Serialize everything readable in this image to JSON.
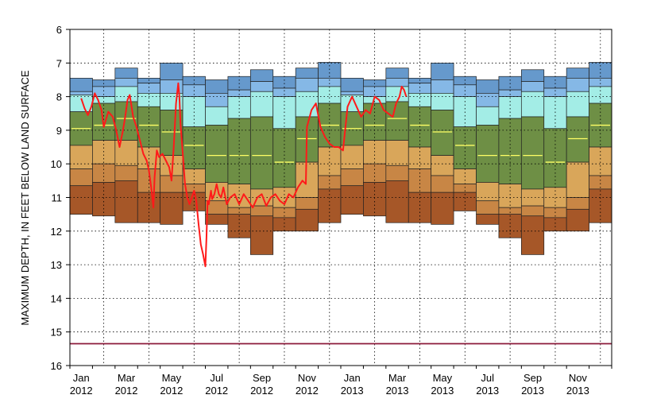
{
  "chart_data": {
    "type": "box-bands-with-line",
    "ylabel": "MAXIMUM DEPTH, IN FEET BELOW LAND SURFACE",
    "y_axis": {
      "min": 6,
      "max": 16,
      "inverted": true,
      "ticks": [
        6,
        7,
        8,
        9,
        10,
        11,
        12,
        13,
        14,
        15,
        16
      ]
    },
    "x_axis": {
      "unit": "months since Jan 2012 (0 = Jan 1 2012)",
      "range": [
        -0.5,
        23.5
      ],
      "tick_labels": [
        {
          "m": 0,
          "top": "Jan",
          "bottom": "2012"
        },
        {
          "m": 2,
          "top": "Mar",
          "bottom": "2012"
        },
        {
          "m": 4,
          "top": "May",
          "bottom": "2012"
        },
        {
          "m": 6,
          "top": "Jul",
          "bottom": "2012"
        },
        {
          "m": 8,
          "top": "Sep",
          "bottom": "2012"
        },
        {
          "m": 10,
          "top": "Nov",
          "bottom": "2012"
        },
        {
          "m": 12,
          "top": "Jan",
          "bottom": "2013"
        },
        {
          "m": 14,
          "top": "Mar",
          "bottom": "2013"
        },
        {
          "m": 16,
          "top": "May",
          "bottom": "2013"
        },
        {
          "m": 18,
          "top": "Jul",
          "bottom": "2013"
        },
        {
          "m": 20,
          "top": "Sep",
          "bottom": "2013"
        },
        {
          "m": 22,
          "top": "Nov",
          "bottom": "2013"
        }
      ]
    },
    "band_colors": [
      "#6699cc",
      "#85b8e6",
      "#a3ede6",
      "#6e8f45",
      "#d9a65a",
      "#c88645",
      "#a65728"
    ],
    "median_color": "#ffff66",
    "month_bands": [
      {
        "month": "Jan",
        "edges": [
          7.45,
          7.85,
          7.95,
          8.45,
          9.45,
          10.15,
          10.65,
          11.5
        ],
        "median": 8.95
      },
      {
        "month": "Feb",
        "edges": [
          7.5,
          7.7,
          8.0,
          8.2,
          9.3,
          10.0,
          10.55,
          11.55
        ],
        "median": 8.85
      },
      {
        "month": "Mar",
        "edges": [
          7.15,
          7.45,
          7.7,
          8.15,
          9.3,
          10.05,
          10.5,
          11.75
        ],
        "median": 8.65
      },
      {
        "month": "Apr",
        "edges": [
          7.45,
          7.6,
          7.9,
          8.3,
          9.5,
          10.15,
          10.85,
          11.75
        ],
        "median": 8.85
      },
      {
        "month": "May",
        "edges": [
          7.0,
          7.5,
          7.9,
          8.4,
          9.75,
          10.35,
          10.85,
          11.8
        ],
        "median": 9.05
      },
      {
        "month": "Jun",
        "edges": [
          7.4,
          7.65,
          8.0,
          8.9,
          10.15,
          10.6,
          10.85,
          11.4
        ],
        "median": 9.45
      },
      {
        "month": "Jul",
        "edges": [
          7.5,
          7.9,
          8.3,
          8.85,
          10.55,
          11.1,
          11.5,
          11.8
        ],
        "median": 9.75
      },
      {
        "month": "Aug",
        "edges": [
          7.4,
          7.8,
          8.0,
          8.65,
          10.6,
          11.3,
          11.5,
          12.2
        ],
        "median": 9.75
      },
      {
        "month": "Sep",
        "edges": [
          7.2,
          7.55,
          7.85,
          8.6,
          10.75,
          11.25,
          11.55,
          12.7
        ],
        "median": 9.75
      },
      {
        "month": "Oct",
        "edges": [
          7.4,
          7.75,
          8.0,
          8.95,
          10.7,
          11.3,
          11.6,
          12.0
        ],
        "median": 9.95
      },
      {
        "month": "Nov",
        "edges": [
          7.15,
          7.45,
          7.85,
          8.6,
          9.95,
          11.0,
          11.35,
          12.0
        ],
        "median": 9.25
      },
      {
        "month": "Dec",
        "edges": [
          6.98,
          7.45,
          7.7,
          8.2,
          9.5,
          10.35,
          10.75,
          11.75
        ],
        "median": 8.85
      }
    ],
    "baseline": {
      "value": 15.35,
      "color": "#8b1a3a"
    },
    "observed_series": {
      "color": "#ff1a1a",
      "x": [
        0,
        0.15,
        0.3,
        0.45,
        0.6,
        0.75,
        0.9,
        1.0,
        1.2,
        1.4,
        1.55,
        1.7,
        1.85,
        1.95,
        2.05,
        2.15,
        2.3,
        2.45,
        2.6,
        2.75,
        2.9,
        3.0,
        3.1,
        3.2,
        3.25,
        3.3,
        3.35,
        3.45,
        3.6,
        3.75,
        3.9,
        4.0,
        4.1,
        4.2,
        4.3,
        4.35,
        4.4,
        4.5,
        4.6,
        4.7,
        4.8,
        4.9,
        5.0,
        5.1,
        5.2,
        5.3,
        5.4,
        5.5,
        5.55,
        5.6,
        5.65,
        5.7,
        5.75,
        5.8,
        5.9,
        6.0,
        6.1,
        6.2,
        6.3,
        6.45,
        6.6,
        6.8,
        7.0,
        7.2,
        7.4,
        7.6,
        7.8,
        8.0,
        8.2,
        8.4,
        8.6,
        8.8,
        9.0,
        9.2,
        9.4,
        9.6,
        9.8,
        9.95,
        10.0,
        10.2,
        10.4,
        10.6,
        10.8,
        11.0,
        11.2,
        11.4,
        11.6,
        11.8,
        12.0,
        12.2,
        12.4,
        12.6,
        12.8,
        13.0,
        13.2,
        13.4,
        13.6,
        13.8,
        13.95,
        14.1,
        14.2,
        14.3,
        14.4
      ],
      "y": [
        8.05,
        8.35,
        8.55,
        8.3,
        7.9,
        8.1,
        8.4,
        8.9,
        8.45,
        8.6,
        9.0,
        9.5,
        9.0,
        8.6,
        8.1,
        7.95,
        8.6,
        8.9,
        9.3,
        9.7,
        9.9,
        10.2,
        10.7,
        11.3,
        10.4,
        10.0,
        9.6,
        9.8,
        9.7,
        9.9,
        10.1,
        10.5,
        9.5,
        8.2,
        7.6,
        8.0,
        8.8,
        9.7,
        10.6,
        11.0,
        11.2,
        11.0,
        10.8,
        11.1,
        11.8,
        12.4,
        12.7,
        13.05,
        12.2,
        11.1,
        11.2,
        11.0,
        10.8,
        11.05,
        10.9,
        10.6,
        10.9,
        11.0,
        10.7,
        11.2,
        11.0,
        10.9,
        11.2,
        10.9,
        11.1,
        11.3,
        11.0,
        10.9,
        11.25,
        11.0,
        10.9,
        11.1,
        11.2,
        10.9,
        11.0,
        10.7,
        10.5,
        10.6,
        8.9,
        8.4,
        8.2,
        8.9,
        9.2,
        9.4,
        9.5,
        9.5,
        9.6,
        8.3,
        8.0,
        8.3,
        8.6,
        8.4,
        8.5,
        8.0,
        8.1,
        8.4,
        8.5,
        8.6,
        8.2,
        8.0,
        7.7,
        7.8,
        8.0
      ]
    }
  }
}
